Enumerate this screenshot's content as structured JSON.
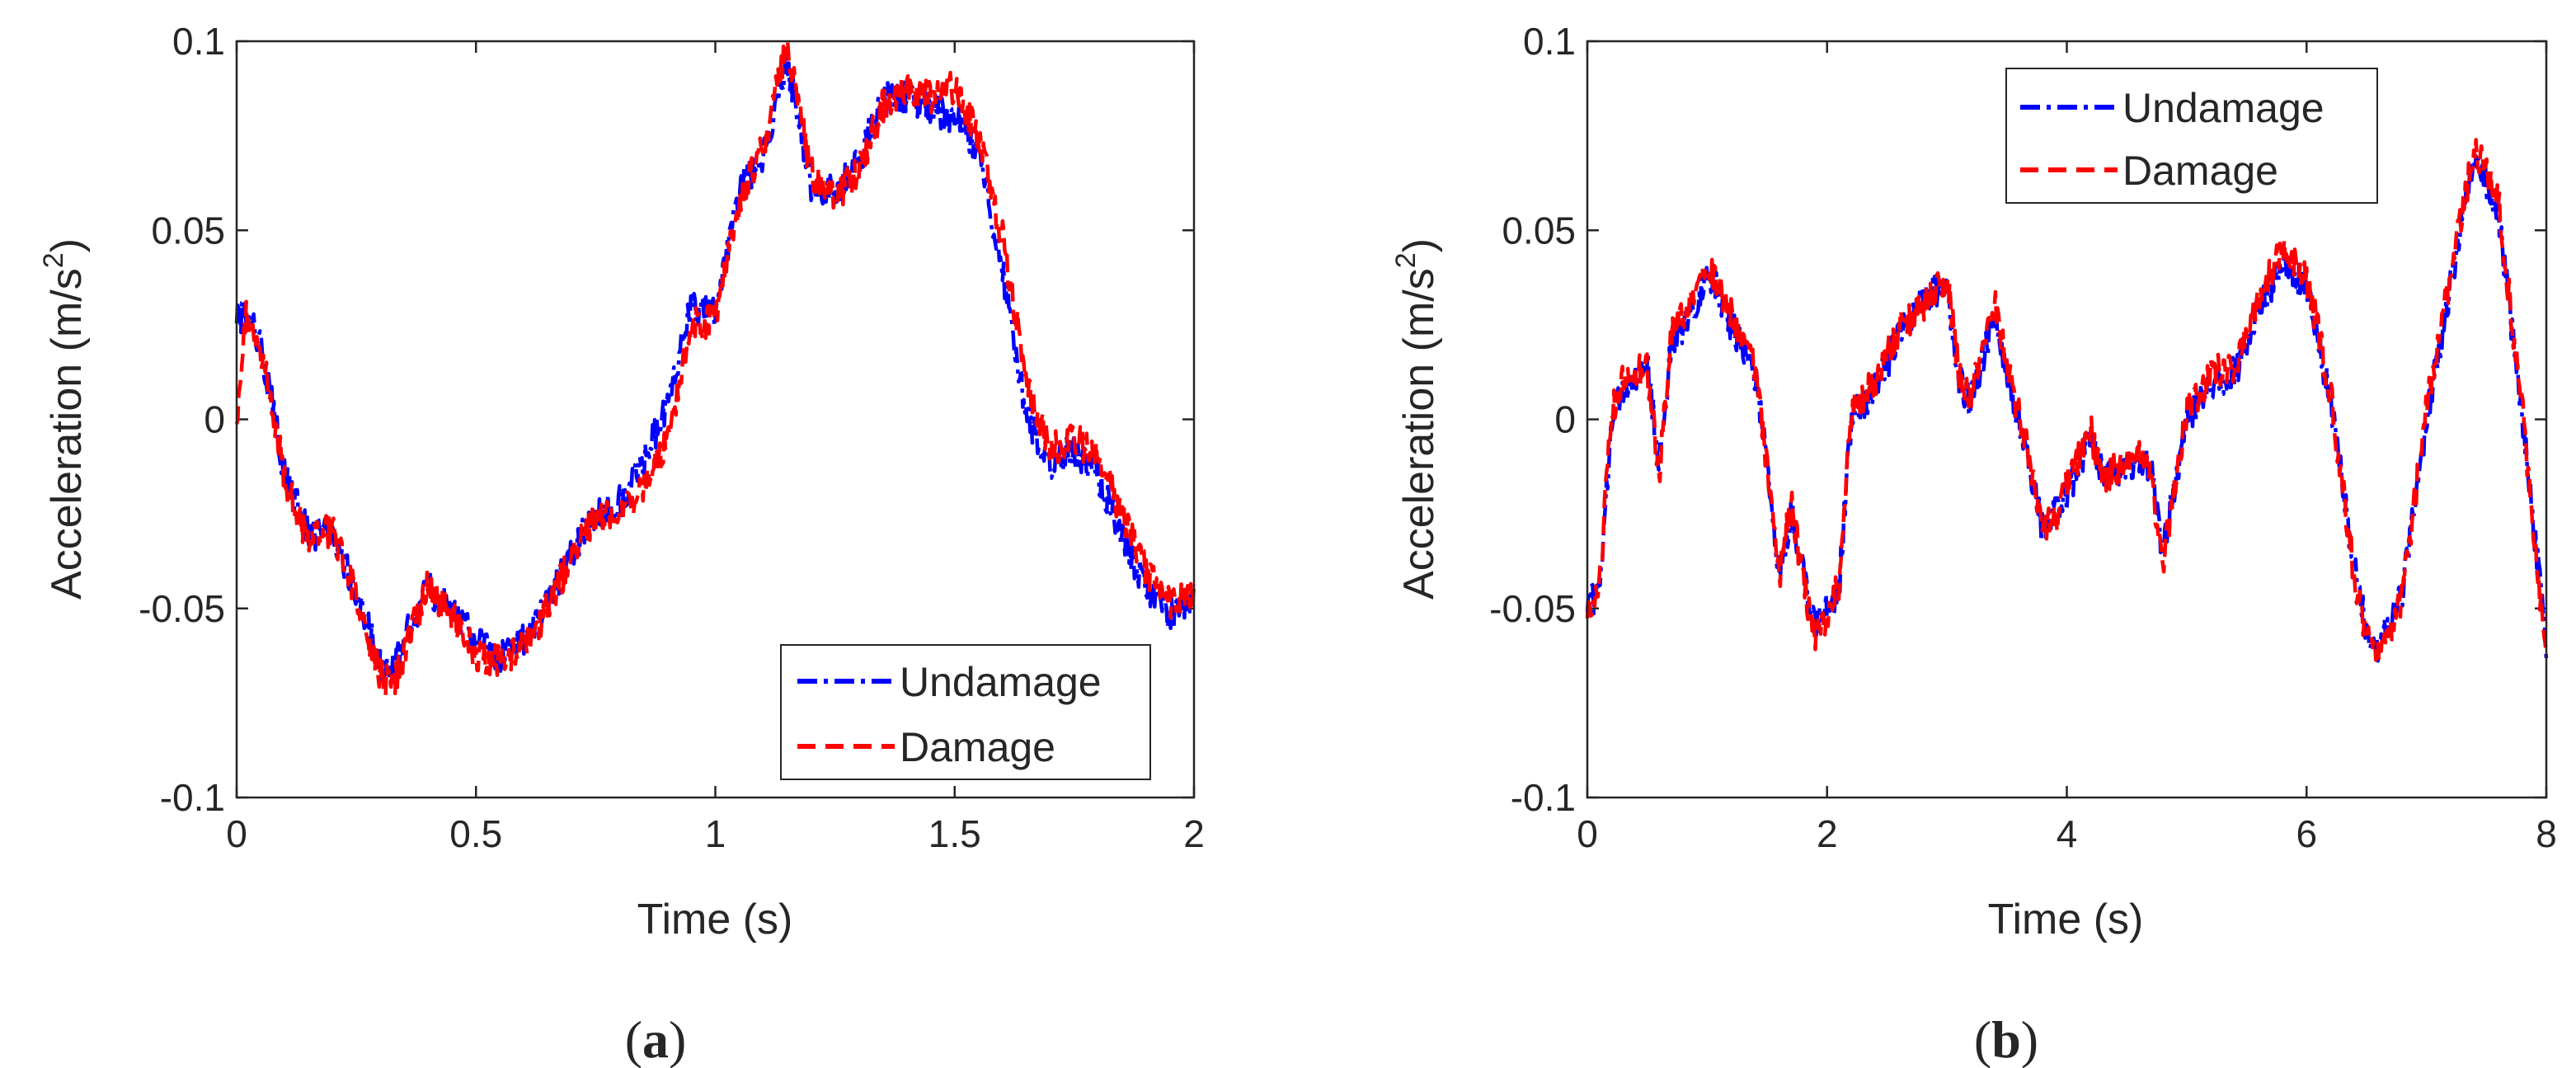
{
  "colors": {
    "undamage": "#0000ff",
    "damage": "#ff0000",
    "axis": "#262626"
  },
  "panels": [
    {
      "label": "a",
      "label_open": "(",
      "label_close": ")"
    },
    {
      "label": "b",
      "label_open": "(",
      "label_close": ")"
    }
  ],
  "chart_data": [
    {
      "type": "line",
      "title": "",
      "xlabel": "Time (s)",
      "ylabel_main": "Acceleration (m/s",
      "ylabel_sup": "2",
      "ylabel_close": ")",
      "xlim": [
        0,
        2
      ],
      "ylim": [
        -0.1,
        0.1
      ],
      "xticks": [
        0,
        0.5,
        1,
        1.5,
        2
      ],
      "xtick_labels": [
        "0",
        "0.5",
        "1",
        "1.5",
        "2"
      ],
      "yticks": [
        -0.1,
        -0.05,
        0,
        0.05,
        0.1
      ],
      "ytick_labels": [
        "-0.1",
        "-0.05",
        "0",
        "0.05",
        "0.1"
      ],
      "legend_position": "bottom-right",
      "series": [
        {
          "name": "Undamage",
          "style": "dash-dot",
          "color": "#0000ff",
          "x": [
            0,
            0.02,
            0.05,
            0.08,
            0.1,
            0.15,
            0.2,
            0.25,
            0.3,
            0.33,
            0.36,
            0.4,
            0.45,
            0.5,
            0.55,
            0.6,
            0.65,
            0.7,
            0.75,
            0.8,
            0.85,
            0.9,
            0.93,
            0.95,
            1.0,
            1.05,
            1.1,
            1.15,
            1.2,
            1.25,
            1.3,
            1.35,
            1.4,
            1.45,
            1.5,
            1.55,
            1.6,
            1.65,
            1.7,
            1.75,
            1.8,
            1.85,
            1.9,
            1.95,
            2.0
          ],
          "y": [
            0.027,
            0.028,
            0.02,
            0.0,
            -0.015,
            -0.03,
            -0.03,
            -0.045,
            -0.065,
            -0.066,
            -0.055,
            -0.045,
            -0.05,
            -0.058,
            -0.063,
            -0.058,
            -0.048,
            -0.035,
            -0.025,
            -0.022,
            -0.012,
            0.005,
            0.02,
            0.03,
            0.028,
            0.06,
            0.07,
            0.095,
            0.062,
            0.06,
            0.068,
            0.085,
            0.085,
            0.082,
            0.08,
            0.07,
            0.04,
            0.0,
            -0.012,
            -0.008,
            -0.015,
            -0.03,
            -0.045,
            -0.052,
            -0.048
          ]
        },
        {
          "name": "Damage",
          "style": "dashed",
          "color": "#ff0000",
          "x": [
            0,
            0.02,
            0.05,
            0.08,
            0.1,
            0.15,
            0.2,
            0.25,
            0.3,
            0.33,
            0.36,
            0.4,
            0.45,
            0.5,
            0.55,
            0.6,
            0.65,
            0.7,
            0.75,
            0.8,
            0.85,
            0.9,
            0.93,
            0.95,
            1.0,
            1.05,
            1.1,
            1.15,
            1.2,
            1.25,
            1.3,
            1.35,
            1.4,
            1.45,
            1.5,
            1.55,
            1.6,
            1.65,
            1.7,
            1.75,
            1.8,
            1.85,
            1.9,
            1.95,
            2.0
          ],
          "y": [
            0.0,
            0.028,
            0.018,
            0.0,
            -0.016,
            -0.032,
            -0.029,
            -0.047,
            -0.068,
            -0.07,
            -0.058,
            -0.044,
            -0.052,
            -0.062,
            -0.064,
            -0.06,
            -0.05,
            -0.036,
            -0.026,
            -0.025,
            -0.018,
            -0.005,
            0.012,
            0.025,
            0.026,
            0.058,
            0.072,
            0.1,
            0.065,
            0.058,
            0.066,
            0.083,
            0.088,
            0.085,
            0.088,
            0.075,
            0.048,
            0.01,
            -0.008,
            -0.005,
            -0.01,
            -0.025,
            -0.04,
            -0.048,
            -0.045
          ]
        }
      ]
    },
    {
      "type": "line",
      "title": "",
      "xlabel": "Time (s)",
      "ylabel_main": "Acceleration (m/s",
      "ylabel_sup": "2",
      "ylabel_close": ")",
      "xlim": [
        0,
        8
      ],
      "ylim": [
        -0.1,
        0.1
      ],
      "xticks": [
        0,
        2,
        4,
        6,
        8
      ],
      "xtick_labels": [
        "0",
        "2",
        "4",
        "6",
        "8"
      ],
      "yticks": [
        -0.1,
        -0.05,
        0,
        0.05,
        0.1
      ],
      "ytick_labels": [
        "-0.1",
        "-0.05",
        "0",
        "0.05",
        "0.1"
      ],
      "legend_position": "top-right",
      "series": [
        {
          "name": "Undamage",
          "style": "dash-dot",
          "color": "#0000ff",
          "x": [
            0,
            0.1,
            0.2,
            0.3,
            0.5,
            0.6,
            0.7,
            0.9,
            1.0,
            1.2,
            1.4,
            1.5,
            1.6,
            1.7,
            1.8,
            1.9,
            2.0,
            2.1,
            2.2,
            2.4,
            2.6,
            2.8,
            3.0,
            3.1,
            3.2,
            3.4,
            3.5,
            3.6,
            3.8,
            3.9,
            4.0,
            4.2,
            4.3,
            4.4,
            4.6,
            4.7,
            4.8,
            5.0,
            5.2,
            5.4,
            5.6,
            5.8,
            6.0,
            6.2,
            6.4,
            6.5,
            6.6,
            6.8,
            7.0,
            7.2,
            7.4,
            7.6,
            7.8,
            8.0
          ],
          "y": [
            -0.05,
            -0.045,
            0.0,
            0.008,
            0.015,
            -0.012,
            0.02,
            0.03,
            0.04,
            0.025,
            0.012,
            -0.01,
            -0.04,
            -0.025,
            -0.04,
            -0.055,
            -0.05,
            -0.045,
            0.0,
            0.008,
            0.022,
            0.032,
            0.035,
            0.01,
            0.005,
            0.028,
            0.012,
            0.0,
            -0.03,
            -0.025,
            -0.02,
            -0.005,
            -0.015,
            -0.015,
            -0.01,
            -0.012,
            -0.035,
            0.0,
            0.01,
            0.012,
            0.03,
            0.04,
            0.035,
            0.005,
            -0.04,
            -0.055,
            -0.06,
            -0.045,
            0.0,
            0.035,
            0.07,
            0.055,
            0.0,
            -0.06
          ]
        },
        {
          "name": "Damage",
          "style": "dashed",
          "color": "#ff0000",
          "x": [
            0,
            0.1,
            0.2,
            0.3,
            0.5,
            0.6,
            0.7,
            0.9,
            1.0,
            1.2,
            1.4,
            1.5,
            1.6,
            1.7,
            1.8,
            1.9,
            2.0,
            2.1,
            2.2,
            2.4,
            2.6,
            2.8,
            3.0,
            3.1,
            3.2,
            3.4,
            3.5,
            3.6,
            3.8,
            3.9,
            4.0,
            4.2,
            4.3,
            4.4,
            4.6,
            4.7,
            4.8,
            5.0,
            5.2,
            5.4,
            5.6,
            5.8,
            6.0,
            6.2,
            6.4,
            6.5,
            6.6,
            6.8,
            7.0,
            7.2,
            7.4,
            7.6,
            7.8,
            8.0
          ],
          "y": [
            -0.052,
            -0.046,
            0.002,
            0.01,
            0.014,
            -0.014,
            0.022,
            0.033,
            0.042,
            0.028,
            0.014,
            -0.012,
            -0.042,
            -0.022,
            -0.042,
            -0.058,
            -0.052,
            -0.043,
            0.002,
            0.01,
            0.024,
            0.03,
            0.038,
            0.012,
            0.006,
            0.03,
            0.014,
            0.002,
            -0.028,
            -0.027,
            -0.018,
            -0.003,
            -0.017,
            -0.013,
            -0.008,
            -0.014,
            -0.038,
            0.002,
            0.012,
            0.014,
            0.032,
            0.045,
            0.038,
            0.007,
            -0.042,
            -0.057,
            -0.063,
            -0.047,
            0.003,
            0.038,
            0.072,
            0.058,
            0.002,
            -0.064
          ]
        }
      ]
    }
  ]
}
